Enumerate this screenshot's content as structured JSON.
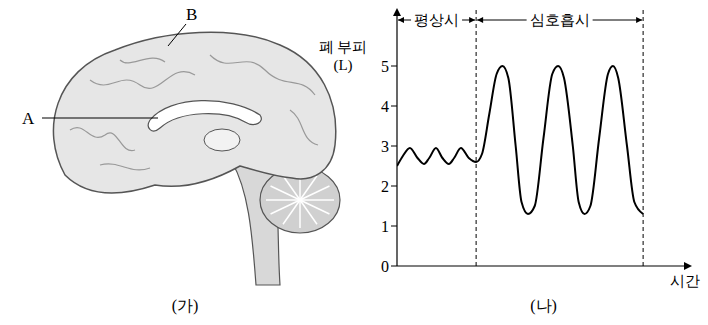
{
  "diagram": {
    "labels": [
      "A",
      "B"
    ],
    "caption": "(가)"
  },
  "chart_data": {
    "type": "line",
    "title": "(나)",
    "xlabel": "시간",
    "ylabel": "폐 부피 (L)",
    "x": [
      0,
      2,
      4.4,
      7,
      9.2,
      11,
      13.3,
      15.5,
      17.7,
      19.5,
      21.8,
      24.5,
      27,
      29,
      31.5,
      34,
      36,
      38,
      40.5,
      42.5,
      44.7,
      47,
      50,
      53,
      55,
      57,
      60,
      62,
      64,
      66,
      69,
      72,
      73.7,
      75.5,
      78.5,
      81,
      84
    ],
    "values": [
      2.5,
      2.75,
      2.95,
      2.7,
      2.55,
      2.7,
      2.95,
      2.7,
      2.55,
      2.7,
      2.95,
      2.7,
      2.6,
      2.8,
      3.8,
      4.8,
      5.0,
      4.7,
      3.0,
      1.6,
      1.3,
      1.5,
      3.2,
      4.8,
      5.0,
      4.7,
      3.0,
      1.6,
      1.3,
      1.5,
      3.2,
      4.8,
      5.0,
      4.7,
      3.0,
      1.6,
      1.3
    ],
    "color": "#000000",
    "xlim": [
      0,
      100
    ],
    "ylim": [
      0,
      6.4
    ],
    "yticks": [
      0,
      1,
      2,
      3,
      4,
      5
    ],
    "tick_labels": "y",
    "grid": false,
    "annotations": [
      {
        "text": "평상시",
        "x": [
          0,
          27
        ]
      },
      {
        "text": "심호흡시",
        "x": [
          27,
          84
        ]
      }
    ]
  }
}
